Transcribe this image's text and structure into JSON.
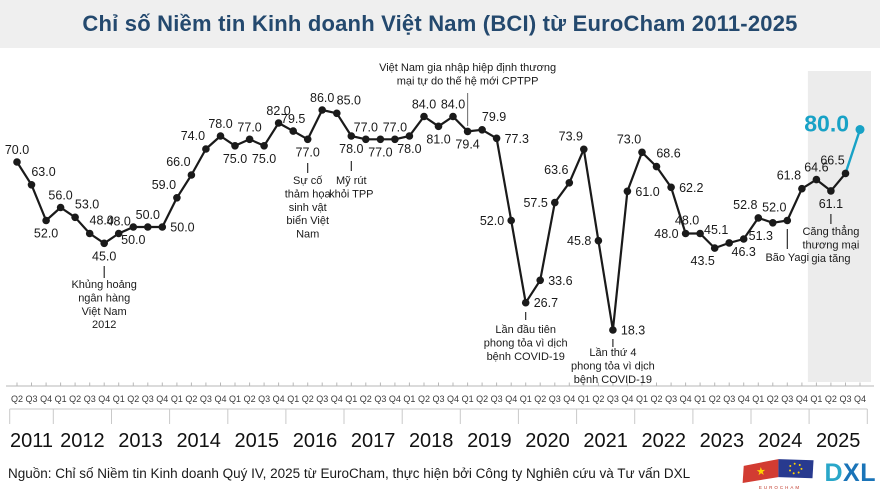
{
  "header": {
    "title": "Chỉ số Niềm tin Kinh doanh Việt Nam (BCI) từ EuroCham 2011-2025"
  },
  "footer": {
    "source_text": "Nguồn: Chỉ số Niềm tin Kinh doanh Quý IV, 2025 từ EuroCham, thực hiện bởi Công ty Nghiên cứu và Tư vấn DXL",
    "eurocham_caption": "EUROCHAM",
    "dxl_d": "D",
    "dxl_xl": "XL"
  },
  "colors": {
    "accent_teal": "#18a2c6",
    "line_black": "#1a1a1a",
    "band_gray": "#ececec",
    "title_navy": "#24496e",
    "title_bar_bg": "#efefef",
    "axis_gray": "#b7b7b7"
  },
  "chart_data": {
    "type": "line",
    "title": "Chỉ số Niềm tin Kinh doanh Việt Nam (BCI) từ EuroCham 2011-2025",
    "xlabel": "",
    "ylabel": "",
    "ylim": [
      10,
      95
    ],
    "grid": false,
    "legend": "none",
    "years": [
      {
        "label": "2011",
        "quarters": [
          "Q2",
          "Q3",
          "Q4"
        ]
      },
      {
        "label": "2012",
        "quarters": [
          "Q1",
          "Q2",
          "Q3",
          "Q4"
        ]
      },
      {
        "label": "2013",
        "quarters": [
          "Q1",
          "Q2",
          "Q3",
          "Q4"
        ]
      },
      {
        "label": "2014",
        "quarters": [
          "Q1",
          "Q2",
          "Q3",
          "Q4"
        ]
      },
      {
        "label": "2015",
        "quarters": [
          "Q1",
          "Q2",
          "Q3",
          "Q4"
        ]
      },
      {
        "label": "2016",
        "quarters": [
          "Q1",
          "Q2",
          "Q3",
          "Q4"
        ]
      },
      {
        "label": "2017",
        "quarters": [
          "Q1",
          "Q2",
          "Q3",
          "Q4"
        ]
      },
      {
        "label": "2018",
        "quarters": [
          "Q1",
          "Q2",
          "Q3",
          "Q4"
        ]
      },
      {
        "label": "2019",
        "quarters": [
          "Q1",
          "Q2",
          "Q3",
          "Q4"
        ]
      },
      {
        "label": "2020",
        "quarters": [
          "Q1",
          "Q2",
          "Q3",
          "Q4"
        ]
      },
      {
        "label": "2021",
        "quarters": [
          "Q1",
          "Q2",
          "Q3",
          "Q4"
        ]
      },
      {
        "label": "2022",
        "quarters": [
          "Q1",
          "Q2",
          "Q3",
          "Q4"
        ]
      },
      {
        "label": "2023",
        "quarters": [
          "Q1",
          "Q2",
          "Q3",
          "Q4"
        ]
      },
      {
        "label": "2024",
        "quarters": [
          "Q1",
          "Q2",
          "Q3",
          "Q4"
        ]
      },
      {
        "label": "2025",
        "quarters": [
          "Q1",
          "Q2",
          "Q3",
          "Q4"
        ]
      }
    ],
    "series": [
      {
        "name": "BCI",
        "values": [
          70,
          63,
          52,
          56,
          53,
          48,
          45,
          48,
          50,
          50,
          50,
          59,
          66,
          74,
          78,
          75,
          77,
          75,
          82,
          79.5,
          77,
          86,
          85,
          78,
          77,
          77,
          77,
          78,
          84,
          81,
          84,
          79.4,
          79.9,
          77.3,
          52,
          26.7,
          33.6,
          57.5,
          63.6,
          73.9,
          45.8,
          18.3,
          61,
          73,
          68.6,
          62.2,
          48,
          48,
          43.5,
          45.1,
          46.3,
          52.8,
          51.3,
          52,
          61.8,
          64.6,
          61.1,
          66.5,
          80
        ]
      }
    ],
    "label_pos": [
      "a",
      "ar",
      "b",
      "a",
      "ar",
      "ar",
      "b",
      "a",
      "b",
      "a",
      "r",
      "al",
      "al",
      "al",
      "a",
      "b",
      "a",
      "b",
      "a",
      "a",
      "b",
      "a",
      "ar",
      "b",
      "a",
      "b",
      "a",
      "b",
      "a",
      "b",
      "a",
      "b",
      "ar",
      "r",
      "l",
      "r",
      "r",
      "l",
      "al",
      "al",
      "l",
      "r",
      "r",
      "al",
      "ar",
      "r",
      "l",
      "al",
      "bl",
      "al",
      "b",
      "al",
      "bl",
      "al",
      "al",
      "a",
      "b",
      "al",
      "L"
    ],
    "highlight": {
      "last_value": 80.0,
      "color": "#18a2c6",
      "band_years": [
        "2025"
      ]
    },
    "annotations": [
      {
        "text": "Khủng hoảng ngân hàng Việt Nam 2012",
        "lines": [
          "Khủng hoảng",
          "ngân hàng",
          "Việt Nam",
          "2012"
        ],
        "index": 6,
        "side": "below",
        "tick_y1": 266,
        "tick_y2": 278,
        "text_y": 288
      },
      {
        "text": "Sự cố thảm họa sinh vật biển Việt Nam",
        "lines": [
          "Sự cố",
          "thảm họa",
          "sinh vật",
          "biển Việt",
          "Nam"
        ],
        "index": 20,
        "side": "below",
        "tick_y1": 163,
        "tick_y2": 173,
        "text_y": 184
      },
      {
        "text": "Mỹ rút khỏi TPP",
        "lines": [
          "Mỹ rút",
          "khỏi TPP"
        ],
        "index": 23,
        "side": "below",
        "tick_y1": 161,
        "tick_y2": 171,
        "text_y": 184
      },
      {
        "text": "Việt Nam gia nhập hiệp định thương mại tự do thế hệ mới CPTPP",
        "lines": [
          "Việt Nam gia nhập hiệp định thương",
          "mại tự do thế hệ mới CPTPP"
        ],
        "index": 31,
        "side": "above",
        "tick_y1": 93,
        "tick_y2": 126,
        "text_y": 71
      },
      {
        "text": "Lần đầu tiên phong tỏa vì dịch bệnh COVID-19",
        "lines": [
          "Lần đầu tiên",
          "phong tỏa vì dịch",
          "bệnh COVID-19"
        ],
        "index": 35,
        "side": "below",
        "tick_y1": 312,
        "tick_y2": 320,
        "text_y": 333
      },
      {
        "text": "Lần thứ 4 phong tỏa vì dịch bệnh COVID-19",
        "lines": [
          "Lần thứ 4",
          "phong tỏa vì dịch",
          "bệnh COVID-19"
        ],
        "index": 41,
        "side": "below",
        "tick_y1": 339,
        "tick_y2": 347,
        "text_y": 356
      },
      {
        "text": "Bão Yagi",
        "lines": [
          "Bão Yagi"
        ],
        "index": 53,
        "side": "below",
        "tick_y1": 229,
        "tick_y2": 249,
        "text_y": 261
      },
      {
        "text": "Căng thẳng thương mại gia tăng",
        "lines": [
          "Căng thẳng",
          "thương mại",
          "gia tăng"
        ],
        "index": 56,
        "side": "below",
        "tick_y1": 214,
        "tick_y2": 224,
        "text_y": 235
      }
    ]
  }
}
